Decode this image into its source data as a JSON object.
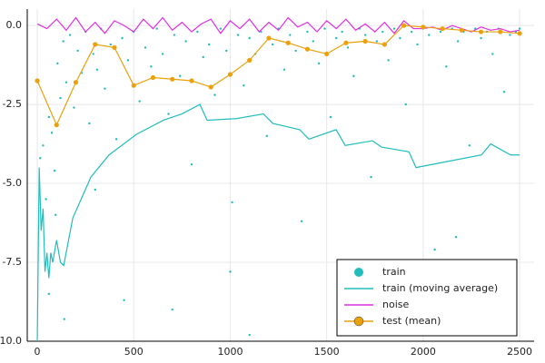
{
  "chart_data": {
    "type": "line",
    "xlim": [
      -52,
      2575
    ],
    "ylim": [
      -10,
      0.52
    ],
    "xticks": [
      0,
      500,
      1000,
      1500,
      2000,
      2500
    ],
    "yticks": [
      {
        "value": 0,
        "label": "0.0"
      },
      -2.5,
      {
        "value": -5,
        "label": "-5.0"
      },
      -7.5,
      {
        "value": -10,
        "label": "-10.0"
      }
    ],
    "grid": true,
    "legend": "bottom right",
    "series": [
      {
        "name": "train",
        "type": "scatter",
        "color": "#22bcbc",
        "x": [
          15,
          30,
          45,
          60,
          75,
          90,
          105,
          120,
          135,
          150,
          170,
          190,
          210,
          230,
          250,
          270,
          290,
          310,
          330,
          350,
          380,
          410,
          440,
          470,
          500,
          530,
          560,
          590,
          620,
          650,
          680,
          710,
          740,
          770,
          800,
          830,
          860,
          890,
          920,
          950,
          980,
          1010,
          1040,
          1070,
          1100,
          1130,
          1160,
          1190,
          1220,
          1250,
          1280,
          1310,
          1340,
          1370,
          1400,
          1430,
          1460,
          1490,
          1520,
          1550,
          1580,
          1610,
          1640,
          1670,
          1700,
          1730,
          1760,
          1790,
          1820,
          1850,
          1880,
          1910,
          1940,
          1970,
          2000,
          2030,
          2060,
          2090,
          2120,
          2150,
          2180,
          2210,
          2240,
          2270,
          2300,
          2330,
          2360,
          2390,
          2420,
          2450,
          2480,
          2500,
          60,
          95,
          140,
          300,
          450,
          700,
          1000,
          1100,
          1600,
          2170
        ],
        "values": [
          -4.2,
          -3.8,
          -5.5,
          -2.9,
          -3.4,
          -4.6,
          -1.2,
          -2.3,
          -0.5,
          -1.8,
          -0.3,
          -2.6,
          -0.8,
          -1.5,
          -0.2,
          -3.1,
          -0.9,
          -1.4,
          -0.1,
          -2.0,
          -0.6,
          -3.6,
          -0.4,
          -1.1,
          -0.2,
          -2.4,
          -0.7,
          -1.3,
          -0.1,
          -0.9,
          -2.8,
          -0.3,
          -1.6,
          -0.5,
          -4.4,
          -0.2,
          -1.0,
          -0.6,
          -2.2,
          -0.1,
          -0.8,
          -5.6,
          -0.3,
          -1.9,
          -0.4,
          -0.9,
          -0.2,
          -3.5,
          -0.6,
          -0.1,
          -1.4,
          -0.3,
          -0.8,
          -6.2,
          -0.2,
          -0.5,
          -1.2,
          -0.1,
          -2.9,
          -0.4,
          -0.2,
          -0.7,
          -1.6,
          -0.1,
          -0.3,
          -4.8,
          -0.5,
          -0.2,
          -1.1,
          -0.1,
          -0.4,
          -2.5,
          -0.2,
          -0.6,
          -0.1,
          -0.3,
          -7.1,
          -0.2,
          -1.3,
          -0.1,
          -0.5,
          -0.2,
          -3.8,
          -0.1,
          -0.4,
          -0.2,
          -0.9,
          -0.1,
          -2.1,
          -0.3,
          -0.2,
          -0.1,
          -8.5,
          -6.0,
          -9.3,
          -5.2,
          -8.7,
          -9.0,
          -7.8,
          -9.8,
          -8.9,
          -6.7
        ]
      },
      {
        "name": "train (moving average)",
        "type": "line",
        "color": "#22bcbc",
        "x": [
          0,
          10,
          20,
          30,
          40,
          50,
          60,
          70,
          80,
          100,
          120,
          137,
          184,
          278,
          372,
          513,
          654,
          749,
          843,
          880,
          1031,
          1172,
          1220,
          1360,
          1408,
          1549,
          1596,
          1737,
          1784,
          1926,
          1963,
          2302,
          2350,
          2453,
          2500
        ],
        "values": [
          -10,
          -4.5,
          -6.5,
          -5.8,
          -7.8,
          -7.2,
          -8.0,
          -7.2,
          -7.5,
          -6.8,
          -7.5,
          -7.6,
          -6.1,
          -4.8,
          -4.1,
          -3.45,
          -3.0,
          -2.8,
          -2.5,
          -3.0,
          -2.95,
          -2.8,
          -3.1,
          -3.3,
          -3.6,
          -3.3,
          -3.8,
          -3.65,
          -3.85,
          -4.0,
          -4.5,
          -4.1,
          -3.75,
          -4.1,
          -4.1
        ]
      },
      {
        "name": "noise",
        "type": "line",
        "color": "#e02fe0",
        "x": [
          0,
          50,
          100,
          150,
          200,
          250,
          300,
          350,
          400,
          450,
          500,
          550,
          600,
          650,
          700,
          750,
          800,
          850,
          900,
          950,
          1000,
          1050,
          1100,
          1150,
          1200,
          1250,
          1300,
          1350,
          1400,
          1450,
          1500,
          1550,
          1600,
          1650,
          1700,
          1750,
          1800,
          1850,
          1900,
          1950,
          2000,
          2050,
          2100,
          2150,
          2200,
          2250,
          2300,
          2350,
          2400,
          2450,
          2500
        ],
        "values": [
          0.05,
          -0.1,
          0.2,
          -0.15,
          0.25,
          -0.2,
          0.1,
          -0.25,
          0.15,
          0.0,
          -0.2,
          0.2,
          -0.1,
          0.25,
          -0.15,
          0.1,
          -0.2,
          0.05,
          0.2,
          -0.25,
          0.15,
          -0.1,
          0.2,
          -0.2,
          0.1,
          -0.15,
          0.25,
          -0.05,
          0.1,
          -0.2,
          0.15,
          -0.1,
          0.2,
          -0.15,
          0.05,
          -0.2,
          0.1,
          -0.25,
          0.15,
          -0.1,
          -0.1,
          -0.05,
          -0.15,
          0.0,
          -0.1,
          -0.2,
          -0.05,
          -0.15,
          -0.1,
          -0.2,
          -0.15
        ]
      },
      {
        "name": "test (mean)",
        "type": "linemarker",
        "color": "#e9a10c",
        "x": [
          0,
          100,
          200,
          300,
          400,
          500,
          600,
          700,
          800,
          900,
          1000,
          1100,
          1200,
          1300,
          1400,
          1500,
          1600,
          1700,
          1800,
          1900,
          2000,
          2100,
          2200,
          2300,
          2400,
          2500
        ],
        "values": [
          -1.75,
          -3.15,
          -1.8,
          -0.6,
          -0.7,
          -1.9,
          -1.65,
          -1.7,
          -1.75,
          -1.95,
          -1.55,
          -1.1,
          -0.4,
          -0.55,
          -0.75,
          -0.9,
          -0.55,
          -0.5,
          -0.6,
          0.0,
          -0.05,
          -0.1,
          -0.15,
          -0.2,
          -0.2,
          -0.25
        ]
      }
    ]
  }
}
